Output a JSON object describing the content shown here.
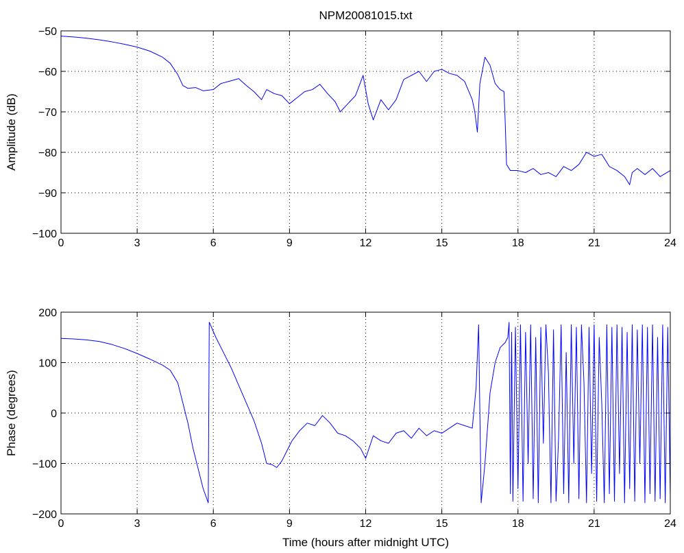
{
  "figure": {
    "title": "NPM20081015.txt",
    "line_color": "#0000ff",
    "axes_color": "#000000",
    "background": "#ffffff"
  },
  "chart_data": [
    {
      "type": "line",
      "title": "NPM20081015.txt",
      "xlabel": "",
      "ylabel": "Amplitude (dB)",
      "xlim": [
        0,
        24
      ],
      "ylim": [
        -100,
        -50
      ],
      "xticks": [
        0,
        3,
        6,
        9,
        12,
        15,
        18,
        21,
        24
      ],
      "yticks": [
        -100,
        -90,
        -80,
        -70,
        -60,
        -50
      ],
      "xtick_labels": [
        "0",
        "3",
        "6",
        "9",
        "12",
        "15",
        "18",
        "21",
        "24"
      ],
      "ytick_labels": [
        "−100",
        "−90",
        "−80",
        "−70",
        "−60",
        "−50"
      ],
      "grid": true,
      "series": [
        {
          "color": "#0000ff",
          "x": [
            0,
            0.5,
            1,
            1.5,
            2,
            2.5,
            3,
            3.5,
            4,
            4.3,
            4.6,
            4.8,
            5.0,
            5.3,
            5.6,
            6.0,
            6.3,
            6.6,
            7.0,
            7.3,
            7.6,
            7.9,
            8.1,
            8.4,
            8.7,
            9.0,
            9.3,
            9.6,
            9.9,
            10.2,
            10.5,
            10.8,
            11.0,
            11.3,
            11.6,
            11.9,
            12.1,
            12.3,
            12.6,
            12.9,
            13.2,
            13.5,
            13.8,
            14.1,
            14.4,
            14.7,
            15.0,
            15.3,
            15.6,
            15.9,
            16.2,
            16.3,
            16.4,
            16.5,
            16.7,
            16.9,
            17.1,
            17.3,
            17.45,
            17.5,
            17.55,
            17.7,
            18.0,
            18.3,
            18.6,
            18.9,
            19.2,
            19.5,
            19.8,
            20.1,
            20.4,
            20.7,
            21.0,
            21.3,
            21.6,
            21.9,
            22.2,
            22.4,
            22.5,
            22.7,
            23.0,
            23.3,
            23.6,
            24.0
          ],
          "y": [
            -51.3,
            -51.5,
            -51.8,
            -52.2,
            -52.7,
            -53.3,
            -54.0,
            -55.0,
            -56.5,
            -58.0,
            -60.8,
            -63.5,
            -64.2,
            -64.0,
            -64.8,
            -64.5,
            -63.0,
            -62.5,
            -61.8,
            -63.5,
            -65.0,
            -67.0,
            -64.5,
            -65.5,
            -66.0,
            -68.0,
            -66.5,
            -65.0,
            -64.5,
            -63.2,
            -65.5,
            -67.5,
            -70.0,
            -68.0,
            -66.0,
            -61.0,
            -68.0,
            -72.0,
            -67.0,
            -69.5,
            -67.0,
            -62.0,
            -61.0,
            -60.0,
            -62.5,
            -60.0,
            -59.5,
            -60.5,
            -61.0,
            -62.5,
            -67.0,
            -70.0,
            -75.0,
            -63.0,
            -56.5,
            -58.5,
            -63.0,
            -64.5,
            -65.0,
            -73.0,
            -83.0,
            -84.5,
            -84.5,
            -85.0,
            -84.0,
            -85.5,
            -85.0,
            -86.0,
            -83.5,
            -84.5,
            -83.0,
            -80.0,
            -81.0,
            -80.5,
            -83.5,
            -84.5,
            -86.0,
            -88.0,
            -85.0,
            -84.0,
            -85.5,
            -84.0,
            -86.0,
            -84.5
          ]
        }
      ]
    },
    {
      "type": "line",
      "title": "",
      "xlabel": "Time (hours after midnight UTC)",
      "ylabel": "Phase (degrees)",
      "xlim": [
        0,
        24
      ],
      "ylim": [
        -200,
        200
      ],
      "xticks": [
        0,
        3,
        6,
        9,
        12,
        15,
        18,
        21,
        24
      ],
      "yticks": [
        -200,
        -100,
        0,
        100,
        200
      ],
      "xtick_labels": [
        "0",
        "3",
        "6",
        "9",
        "12",
        "15",
        "18",
        "21",
        "24"
      ],
      "ytick_labels": [
        "−200",
        "−100",
        "0",
        "100",
        "200"
      ],
      "grid": true,
      "series": [
        {
          "color": "#0000ff",
          "x": [
            0,
            0.5,
            1.0,
            1.5,
            2.0,
            2.5,
            3.0,
            3.5,
            4.0,
            4.3,
            4.6,
            4.8,
            5.0,
            5.2,
            5.4,
            5.6,
            5.8,
            5.82,
            5.84,
            5.86,
            6.1,
            6.4,
            6.7,
            7.0,
            7.3,
            7.6,
            7.9,
            8.1,
            8.3,
            8.5,
            8.7,
            8.9,
            9.1,
            9.4,
            9.7,
            10.0,
            10.3,
            10.6,
            10.9,
            11.2,
            11.5,
            11.8,
            12.0,
            12.3,
            12.6,
            12.9,
            13.2,
            13.5,
            13.8,
            14.1,
            14.4,
            14.7,
            15.0,
            15.3,
            15.6,
            15.9,
            16.2,
            16.35,
            16.45,
            16.55,
            16.7,
            16.9,
            17.1,
            17.3,
            17.5,
            17.6,
            17.65,
            17.7,
            17.75,
            17.8,
            17.9,
            18.0,
            18.1,
            18.2,
            18.3,
            18.4,
            18.5,
            18.6,
            18.7,
            18.8,
            18.9,
            19.0,
            19.1,
            19.2,
            19.3,
            19.4,
            19.5,
            19.6,
            19.7,
            19.8,
            19.9,
            20.0,
            20.1,
            20.2,
            20.3,
            20.4,
            20.5,
            20.6,
            20.7,
            20.8,
            20.9,
            21.0,
            21.1,
            21.2,
            21.3,
            21.4,
            21.5,
            21.6,
            21.7,
            21.8,
            21.9,
            22.0,
            22.1,
            22.2,
            22.3,
            22.4,
            22.5,
            22.6,
            22.7,
            22.8,
            22.9,
            23.0,
            23.1,
            23.2,
            23.3,
            23.4,
            23.5,
            23.6,
            23.7,
            23.8,
            23.9,
            24.0
          ],
          "y": [
            148,
            147,
            145,
            142,
            136,
            128,
            118,
            107,
            95,
            85,
            60,
            20,
            -20,
            -70,
            -110,
            -150,
            -178,
            0,
            180,
            178,
            150,
            120,
            90,
            55,
            20,
            -15,
            -60,
            -100,
            -102,
            -108,
            -95,
            -75,
            -55,
            -35,
            -20,
            -25,
            -5,
            -20,
            -40,
            -45,
            -55,
            -70,
            -90,
            -45,
            -55,
            -60,
            -40,
            -35,
            -50,
            -30,
            -45,
            -35,
            -40,
            -30,
            -20,
            -25,
            -30,
            50,
            175,
            -178,
            -100,
            40,
            100,
            130,
            140,
            150,
            180,
            -160,
            160,
            -175,
            170,
            -150,
            175,
            -175,
            160,
            -100,
            175,
            -170,
            150,
            -178,
            170,
            -60,
            175,
            80,
            -178,
            165,
            -175,
            -50,
            175,
            -160,
            120,
            -178,
            175,
            -100,
            170,
            -170,
            175,
            60,
            -178,
            170,
            -120,
            175,
            -175,
            150,
            20,
            -178,
            175,
            -160,
            170,
            -175,
            175,
            -120,
            170,
            -178,
            160,
            -150,
            175,
            -175,
            165,
            -100,
            175,
            -178,
            170,
            -160,
            175,
            -175,
            150,
            -170,
            175,
            -178,
            170,
            -165
          ]
        }
      ]
    }
  ]
}
